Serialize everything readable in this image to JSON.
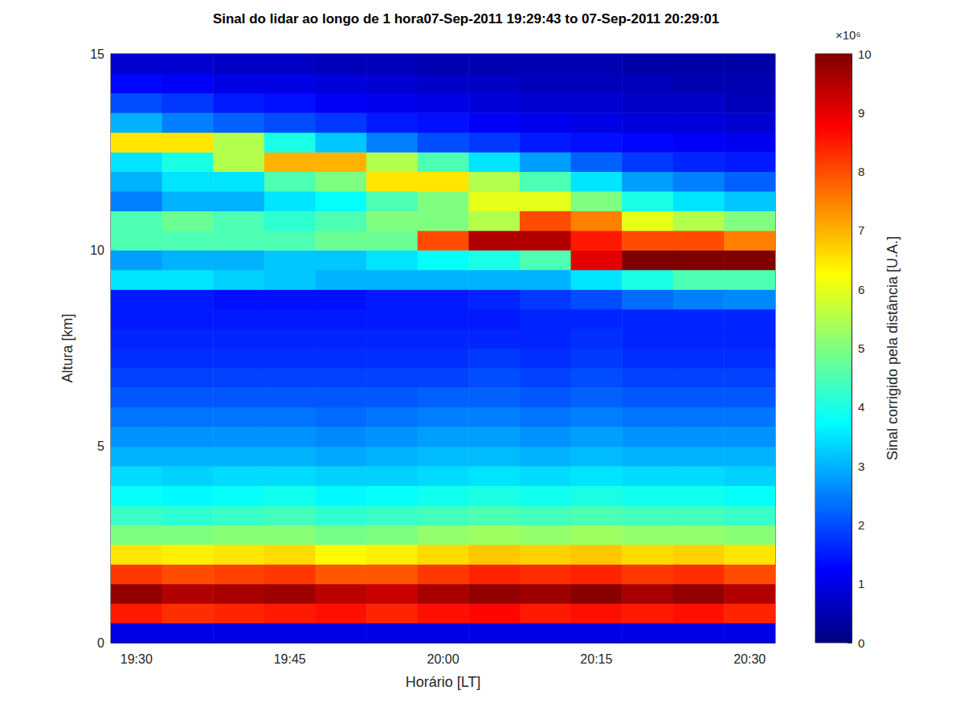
{
  "chart_data": {
    "type": "heatmap",
    "title": "Sinal do lidar ao longo de 1 hora07-Sep-2011 19:29:43 to 07-Sep-2011 20:29:01",
    "x_label": "Horário [LT]",
    "y_label": "Altura [km]",
    "categories": [
      "19:30",
      null,
      null,
      "19:45",
      null,
      null,
      "20:00",
      null,
      null,
      "20:15",
      null,
      null,
      "20:30"
    ],
    "altitude_bins": [
      0,
      0.5,
      1,
      1.5,
      2,
      2.5,
      3,
      3.5,
      4,
      4.5,
      5,
      5.5,
      6,
      6.5,
      7,
      7.5,
      8,
      8.5,
      9,
      9.5,
      10,
      10.5,
      11,
      11.5,
      12,
      12.5,
      13,
      13.5,
      14,
      14.5,
      15
    ],
    "ylim": [
      0,
      15
    ],
    "yticks": [
      0,
      5,
      10,
      15
    ],
    "values": [
      [
        1.0,
        8.5,
        9.8,
        8.2,
        6.5,
        5.0,
        4.3,
        3.8,
        3.4,
        3.0,
        2.7,
        2.4,
        2.1,
        1.9,
        1.7,
        1.6,
        1.5,
        1.5,
        3.5,
        2.8,
        4.5,
        4.5,
        2.5,
        3,
        3.5,
        6.5,
        3,
        2,
        1.3,
        0.8
      ],
      [
        1.0,
        8.3,
        9.5,
        8.0,
        6.4,
        5.0,
        4.2,
        3.7,
        3.3,
        3.0,
        2.7,
        2.4,
        2.1,
        1.9,
        1.7,
        1.6,
        1.5,
        1.5,
        3.5,
        3,
        4.5,
        4.8,
        3,
        3.5,
        4,
        6.5,
        2.5,
        1.8,
        1.2,
        0.8
      ],
      [
        1.0,
        8.4,
        9.6,
        8.1,
        6.5,
        5.1,
        4.3,
        3.8,
        3.4,
        3.0,
        2.7,
        2.4,
        2.1,
        1.9,
        1.7,
        1.6,
        1.5,
        1.4,
        3.3,
        3,
        4.5,
        4.5,
        3,
        3.5,
        5.5,
        5.5,
        2.2,
        1.5,
        1,
        0.7
      ],
      [
        1.0,
        8.5,
        9.7,
        8.2,
        6.6,
        5.1,
        4.4,
        3.9,
        3.4,
        3.0,
        2.7,
        2.4,
        2.1,
        1.9,
        1.7,
        1.6,
        1.5,
        1.4,
        3.2,
        3.2,
        4.5,
        4.2,
        3.5,
        4.5,
        7,
        4,
        2,
        1.4,
        1,
        0.7
      ],
      [
        1.0,
        8.6,
        9.4,
        7.9,
        6.3,
        4.9,
        4.2,
        3.7,
        3.3,
        2.9,
        2.6,
        2.3,
        2.1,
        1.9,
        1.7,
        1.6,
        1.5,
        1.4,
        3,
        3.2,
        4.8,
        4.5,
        3.8,
        5,
        7,
        3.2,
        1.8,
        1.2,
        0.9,
        0.6
      ],
      [
        1.0,
        8.4,
        9.3,
        7.9,
        6.4,
        5.0,
        4.3,
        3.8,
        3.3,
        3.0,
        2.7,
        2.4,
        2.1,
        1.9,
        1.7,
        1.6,
        1.5,
        1.5,
        3,
        3.5,
        4.8,
        5,
        4.5,
        6.5,
        5.5,
        2.5,
        1.5,
        1.1,
        0.8,
        0.6
      ],
      [
        1.0,
        8.6,
        9.6,
        8.2,
        6.6,
        5.2,
        4.4,
        3.9,
        3.4,
        3.1,
        2.8,
        2.5,
        2.2,
        1.9,
        1.7,
        1.6,
        1.5,
        1.5,
        3,
        3.8,
        8,
        5,
        5,
        6.5,
        4.5,
        2,
        1.4,
        1,
        0.7,
        0.5
      ],
      [
        1.0,
        8.7,
        9.8,
        8.4,
        6.8,
        5.3,
        4.5,
        4.0,
        3.5,
        3.1,
        2.8,
        2.5,
        2.2,
        2.0,
        1.8,
        1.6,
        1.5,
        1.6,
        3,
        4,
        9.5,
        5.5,
        6,
        5.5,
        3.5,
        1.8,
        1.2,
        0.9,
        0.7,
        0.5
      ],
      [
        1.0,
        8.5,
        9.7,
        8.3,
        6.7,
        5.2,
        4.4,
        3.9,
        3.4,
        3.0,
        2.7,
        2.4,
        2.1,
        1.9,
        1.7,
        1.6,
        1.6,
        1.8,
        3,
        4.5,
        9.5,
        8,
        6,
        4.5,
        2.8,
        1.5,
        1.1,
        0.8,
        0.6,
        0.5
      ],
      [
        1.0,
        8.6,
        9.9,
        8.4,
        6.8,
        5.3,
        4.5,
        4.0,
        3.5,
        3.1,
        2.8,
        2.5,
        2.2,
        2.0,
        1.8,
        1.7,
        1.6,
        2.0,
        3.5,
        9,
        8.5,
        7.5,
        5,
        3.5,
        2.2,
        1.4,
        1,
        0.8,
        0.6,
        0.5
      ],
      [
        1.0,
        8.5,
        9.6,
        8.2,
        6.6,
        5.2,
        4.4,
        3.9,
        3.4,
        3.0,
        2.7,
        2.4,
        2.1,
        1.9,
        1.7,
        1.6,
        1.6,
        2.3,
        4,
        10,
        8,
        6,
        4,
        2.8,
        1.8,
        1.3,
        0.9,
        0.7,
        0.6,
        0.4
      ],
      [
        1.0,
        8.6,
        9.8,
        8.3,
        6.7,
        5.2,
        4.4,
        3.9,
        3.4,
        3.0,
        2.7,
        2.4,
        2.1,
        1.9,
        1.7,
        1.6,
        1.6,
        2.5,
        4.5,
        10,
        8,
        5.5,
        3.5,
        2.5,
        1.6,
        1.2,
        0.9,
        0.7,
        0.5,
        0.4
      ],
      [
        1.0,
        8.4,
        9.5,
        8.0,
        6.5,
        5.1,
        4.3,
        3.8,
        3.3,
        3.0,
        2.7,
        2.4,
        2.1,
        1.9,
        1.7,
        1.6,
        1.6,
        2.6,
        4.5,
        10,
        7.5,
        5,
        3.2,
        2.2,
        1.5,
        1.1,
        0.8,
        0.6,
        0.5,
        0.4
      ]
    ],
    "colorbar": {
      "label": "Sinal corrigido pela distância [U.A.]",
      "multiplier": "×10⁶",
      "range": [
        0,
        10
      ],
      "ticks": [
        0,
        1,
        2,
        3,
        4,
        5,
        6,
        7,
        8,
        9,
        10
      ]
    }
  }
}
